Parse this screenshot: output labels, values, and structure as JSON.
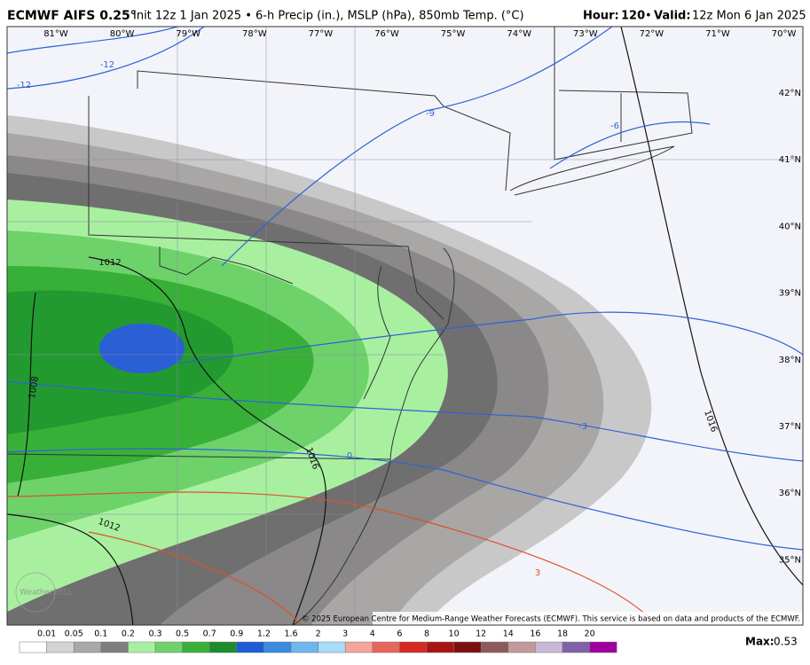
{
  "header": {
    "title": "ECMWF AIFS 0.25°",
    "subtitle": "Init 12z 1 Jan 2025 • 6-h Precip (in.), MSLP (hPa), 850mb Temp. (°C)",
    "hour_label": "Hour:",
    "hour": "120",
    "separator": "•",
    "valid_label": "Valid:",
    "valid": "12z Mon 6 Jan 2025"
  },
  "map": {
    "lon_labels": [
      "81°W",
      "80°W",
      "79°W",
      "78°W",
      "77°W",
      "76°W",
      "75°W",
      "74°W",
      "73°W",
      "72°W",
      "71°W",
      "70°W"
    ],
    "lat_labels": [
      "42°N",
      "41°N",
      "40°N",
      "39°N",
      "38°N",
      "37°N",
      "36°N",
      "35°N"
    ],
    "contour_labels": [
      "-12",
      "-12",
      "-9",
      "-6",
      "-3",
      "0",
      "3",
      "1012",
      "1012",
      "1016",
      "1016",
      "1008"
    ],
    "logo": "WeatherBELL",
    "copyright": "© 2025 European Centre for Medium-Range Weather Forecasts (ECMWF). This service is based on data and products of the ECMWF."
  },
  "colorbar": {
    "labels": [
      "0.01",
      "0.05",
      "0.1",
      "0.2",
      "0.3",
      "0.5",
      "0.7",
      "0.9",
      "1.2",
      "1.6",
      "2",
      "3",
      "4",
      "6",
      "8",
      "10",
      "12",
      "14",
      "16",
      "18",
      "20"
    ],
    "colors": [
      "#ffffff",
      "#d4d4d4",
      "#a9a9a9",
      "#7e7e7e",
      "#a8f0a0",
      "#6ed26a",
      "#38b038",
      "#1e8c2a",
      "#1c5cd6",
      "#3a8ae0",
      "#6eb6ee",
      "#a8dcf8",
      "#f4a69a",
      "#e8655a",
      "#d42a22",
      "#a81414",
      "#7a1010",
      "#8c5a58",
      "#c09a98",
      "#c8b8d8",
      "#8060a8",
      "#a000a0"
    ]
  },
  "max": {
    "label": "Max:",
    "value": "0.53"
  }
}
